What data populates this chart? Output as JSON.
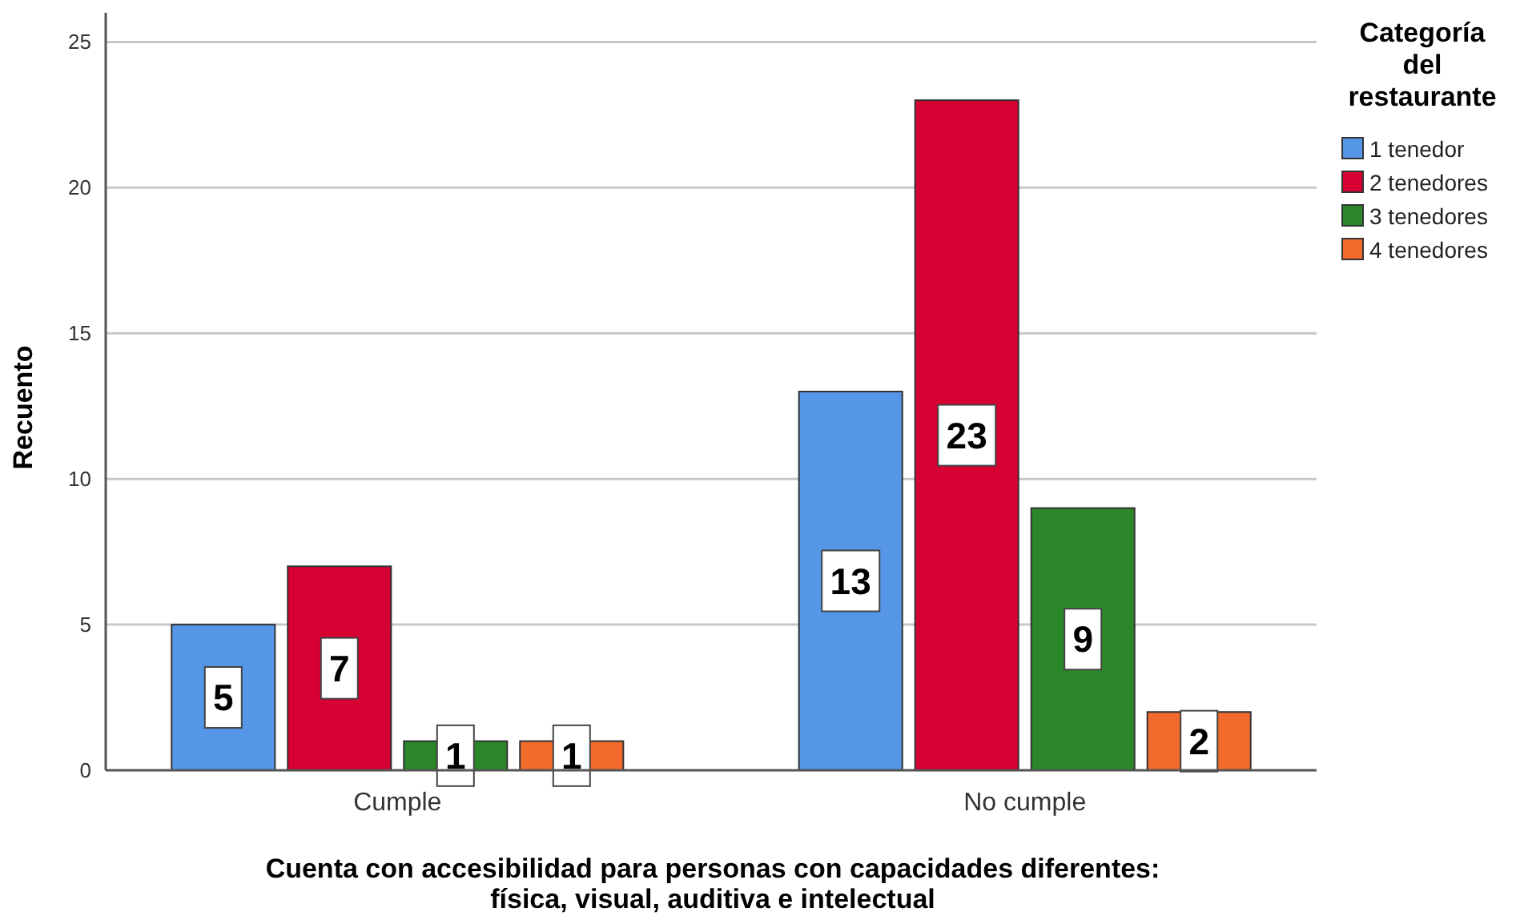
{
  "chart_data": {
    "type": "bar",
    "xlabel": "Cuenta con accesibilidad para personas con capacidades diferentes: física, visual, auditiva e intelectual",
    "ylabel": "Recuento",
    "legend_title": "Categoría del restaurante",
    "categories": [
      "Cumple",
      "No cumple"
    ],
    "series": [
      {
        "name": "1 tenedor",
        "color": "#5596e6",
        "values": [
          5,
          13
        ]
      },
      {
        "name": "2 tenedores",
        "color": "#d60032",
        "values": [
          7,
          23
        ]
      },
      {
        "name": "3 tenedores",
        "color": "#2b872a",
        "values": [
          1,
          9
        ]
      },
      {
        "name": "4 tenedores",
        "color": "#f26b2d",
        "values": [
          1,
          2
        ]
      }
    ],
    "ylim": [
      0,
      26
    ],
    "yticks": [
      0,
      5,
      10,
      15,
      20,
      25
    ],
    "grid": "y",
    "legend": "top right",
    "data_labels": true
  }
}
